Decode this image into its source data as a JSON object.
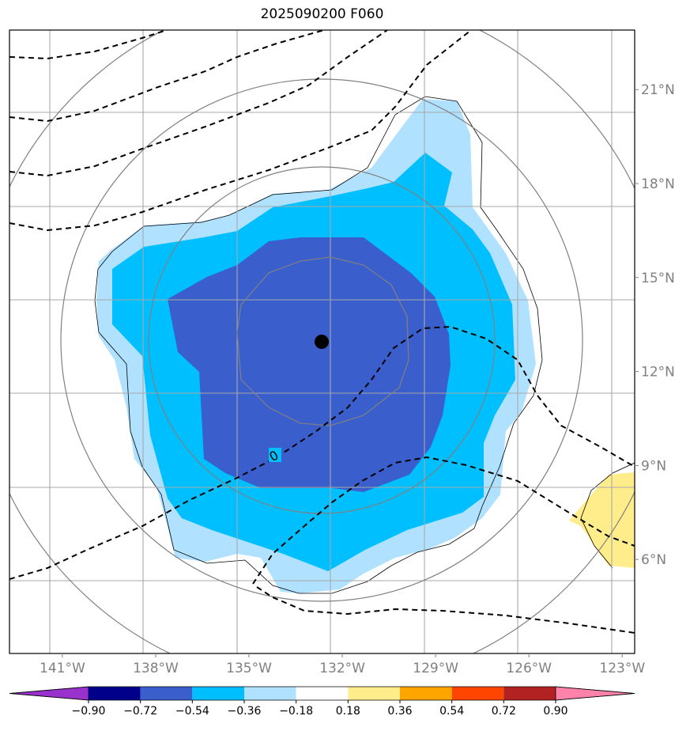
{
  "chart_data": {
    "type": "contour-map",
    "title": "2025090200 F060",
    "x_axis": {
      "range": [
        -142.7,
        -122.6
      ],
      "ticks": [
        -141,
        -138,
        -135,
        -132,
        -129,
        -126,
        -123
      ],
      "tick_labels": [
        "141°W",
        "138°W",
        "135°W",
        "132°W",
        "129°W",
        "126°W",
        "123°W"
      ]
    },
    "y_axis": {
      "range": [
        3.0,
        22.9
      ],
      "ticks": [
        6,
        9,
        12,
        15,
        18,
        21
      ],
      "tick_labels": [
        "6°N",
        "9°N",
        "12°N",
        "15°N",
        "18°N",
        "21°N"
      ],
      "side": "right"
    },
    "center_marker": {
      "lon": -132.3,
      "lat": 13.7
    },
    "dashed_contour_label": "0",
    "colorbar": {
      "levels": [
        -0.9,
        -0.72,
        -0.54,
        -0.36,
        -0.18,
        0.18,
        0.36,
        0.54,
        0.72,
        0.9
      ],
      "labels": [
        "−0.90",
        "−0.72",
        "−0.54",
        "−0.36",
        "−0.18",
        "0.18",
        "0.36",
        "0.54",
        "0.72",
        "0.90"
      ],
      "colors": [
        "#9932CC",
        "#00008B",
        "#3A5FCD",
        "#00BFFF",
        "#B0E2FF",
        "#FFFFFF",
        "#FFEC8B",
        "#FFA500",
        "#FF4500",
        "#B22222",
        "#FF82AB"
      ],
      "extend": "both"
    }
  }
}
